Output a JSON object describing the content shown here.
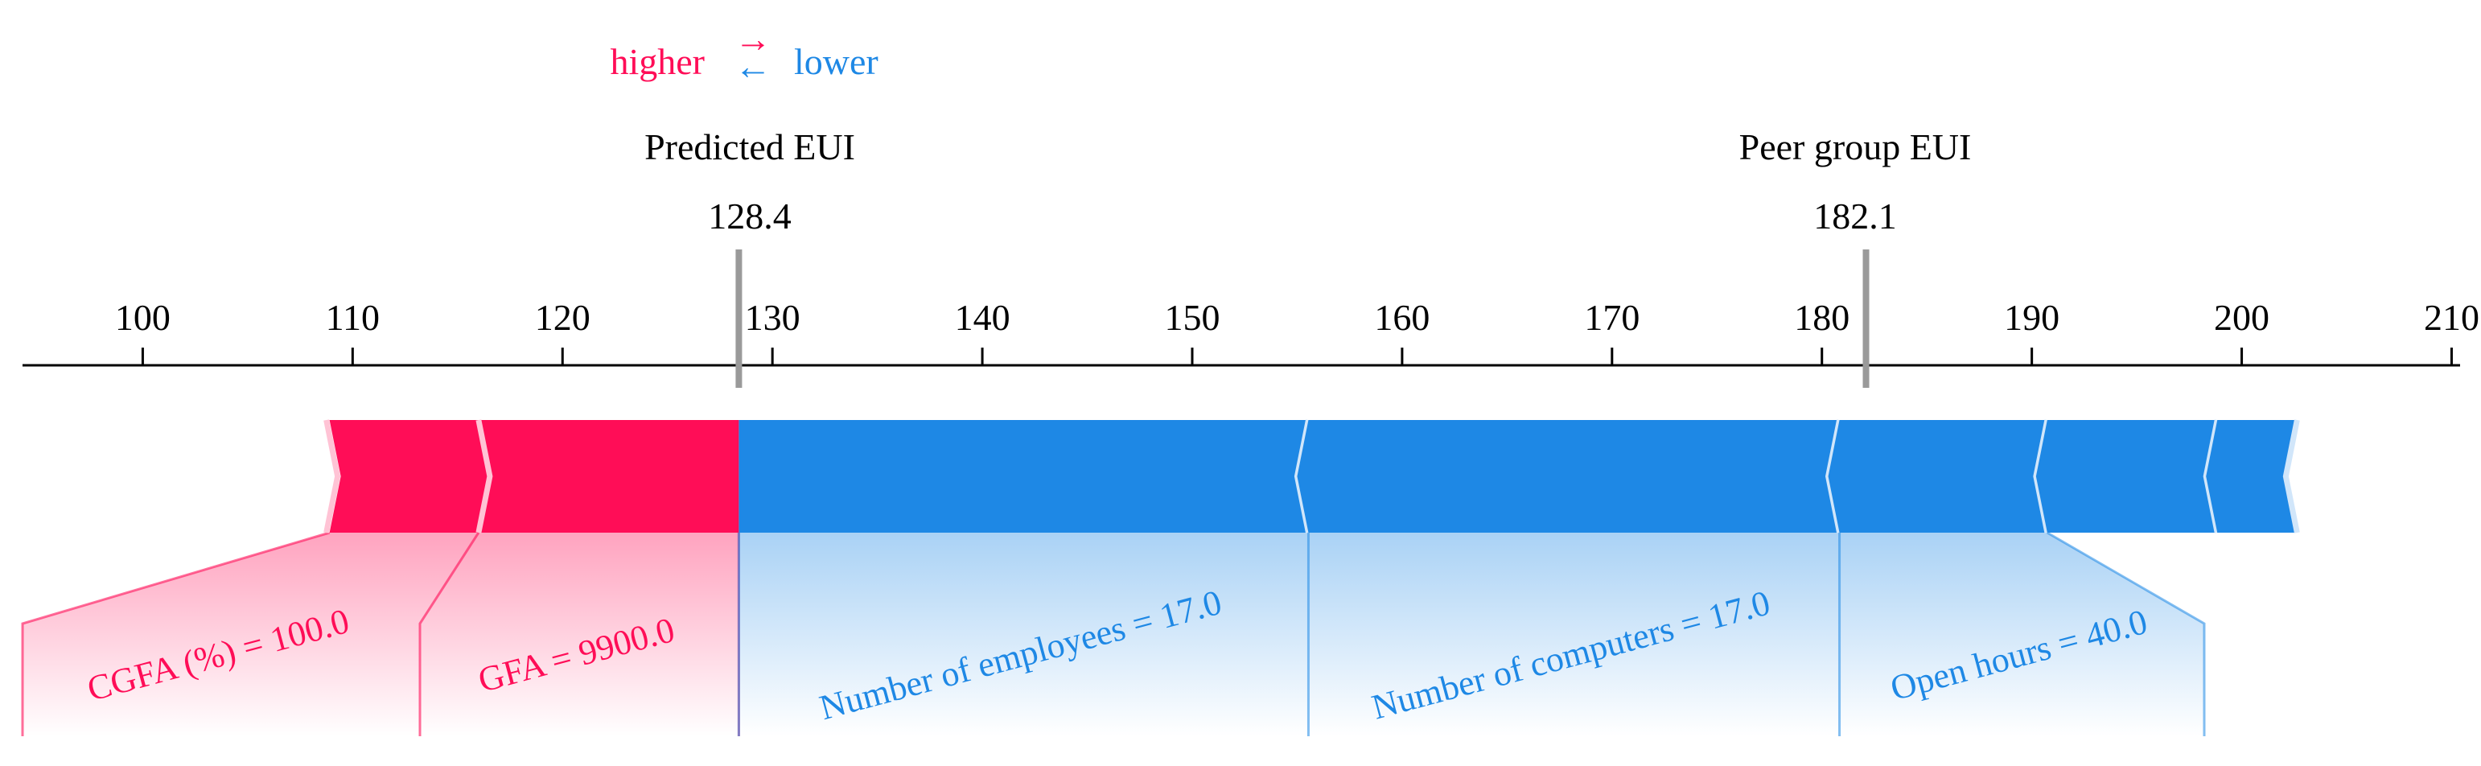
{
  "legend": {
    "higher_label": "higher",
    "lower_label": "lower",
    "higher_arrow": "→",
    "lower_arrow": "←"
  },
  "markers": {
    "predicted": {
      "label": "Predicted EUI",
      "value_text": "128.4",
      "value": 128.4
    },
    "peer": {
      "label": "Peer group EUI",
      "value_text": "182.1",
      "value": 182.1
    }
  },
  "chart_data": {
    "type": "force_plot",
    "xlim": [
      93.2,
      211.4
    ],
    "ticks": [
      100,
      110,
      120,
      130,
      140,
      150,
      160,
      170,
      180,
      190,
      200,
      210
    ],
    "tick_labels": [
      "100",
      "110",
      "120",
      "130",
      "140",
      "150",
      "160",
      "170",
      "180",
      "190",
      "200",
      "210"
    ],
    "positive_segments": [
      {
        "start": 108.9,
        "end": 116.0,
        "feature_label": "CGFA (%) = 100.0"
      },
      {
        "start": 116.0,
        "end": 128.4,
        "feature_label": "GFA = 9900.0"
      }
    ],
    "negative_segments": [
      {
        "start": 128.4,
        "end": 155.0,
        "feature_label": "Number of employees = 17.0"
      },
      {
        "start": 155.0,
        "end": 180.3,
        "feature_label": "Number of computers = 17.0"
      },
      {
        "start": 180.3,
        "end": 190.2,
        "feature_label": "Open hours = 40.0"
      },
      {
        "start": 190.2,
        "end": 198.3,
        "feature_label": ""
      },
      {
        "start": 198.3,
        "end": 202.1,
        "feature_label": ""
      }
    ],
    "colors": {
      "positive": "#ff0d57",
      "negative": "#1e88e5"
    }
  }
}
